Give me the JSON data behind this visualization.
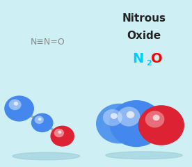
{
  "bg_light_blue": "#cef0f5",
  "bg_white": "#ffffff",
  "title_line1": "Nitrous",
  "title_line2": "Oxide",
  "formula_N_color": "#00ccff",
  "formula_O_color": "#ff0000",
  "struct_formula": "N≡N=O",
  "struct_color": "#888888",
  "ball_blue": "#4488ee",
  "ball_blue_dark": "#2255bb",
  "ball_red": "#dd2233",
  "ball_red_dark": "#aa1122",
  "stick_color": "#aaaaaa",
  "shadow_color": "#99ccd8",
  "title_color": "#222222"
}
